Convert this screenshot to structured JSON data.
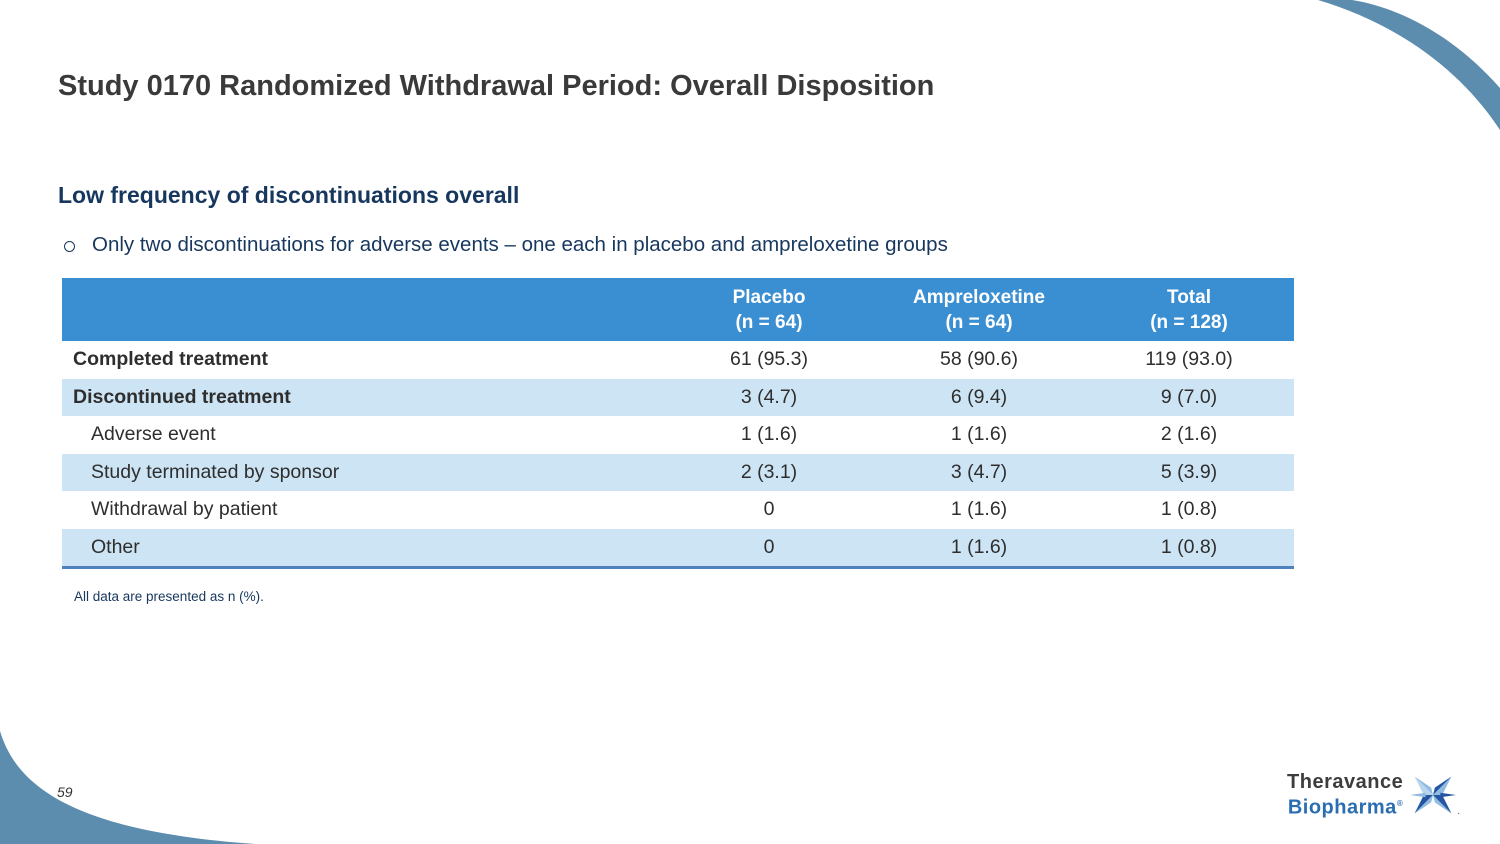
{
  "slide": {
    "title": "Study 0170 Randomized Withdrawal Period: Overall Disposition",
    "subtitle": "Low frequency of discontinuations overall",
    "bullet": "Only two discontinuations for adverse events – one each in placebo and ampreloxetine groups",
    "footnote": "All data are presented as n (%).",
    "page_number": "59"
  },
  "table": {
    "columns": [
      {
        "label": "Placebo",
        "sub": "(n = 64)"
      },
      {
        "label": "Ampreloxetine",
        "sub": "(n = 64)"
      },
      {
        "label": "Total",
        "sub": "(n = 128)"
      }
    ],
    "rows": [
      {
        "label": "Completed treatment",
        "bold": true,
        "indent": false,
        "values": [
          "61 (95.3)",
          "58 (90.6)",
          "119 (93.0)"
        ]
      },
      {
        "label": "Discontinued treatment",
        "bold": true,
        "indent": false,
        "values": [
          "3 (4.7)",
          "6 (9.4)",
          "9 (7.0)"
        ]
      },
      {
        "label": "Adverse event",
        "bold": false,
        "indent": true,
        "values": [
          "1 (1.6)",
          "1 (1.6)",
          "2 (1.6)"
        ]
      },
      {
        "label": "Study terminated by sponsor",
        "bold": false,
        "indent": true,
        "values": [
          "2 (3.1)",
          "3 (4.7)",
          "5 (3.9)"
        ]
      },
      {
        "label": "Withdrawal by patient",
        "bold": false,
        "indent": true,
        "values": [
          "0",
          "1 (1.6)",
          "1 (0.8)"
        ]
      },
      {
        "label": "Other",
        "bold": false,
        "indent": true,
        "values": [
          "0",
          "1 (1.6)",
          "1 (0.8)"
        ]
      }
    ]
  },
  "logo": {
    "line1": "Theravance",
    "line2": "Biopharma",
    "reg_mark": "®",
    "dot": "."
  },
  "colors": {
    "header-blue": "#3A8ED2",
    "row-alt-blue": "#CDE4F4",
    "table-bottom-line": "#4F81BD",
    "navy": "#17375E",
    "title-gray": "#3A3A3A",
    "body-text": "#2E2E2E",
    "steel-swoosh": "#5C8CAE",
    "logo-gray": "#3D3D3D",
    "logo-blue": "#2A6DB0",
    "star-light": "#8FBCE0",
    "star-dark": "#2456A4"
  }
}
